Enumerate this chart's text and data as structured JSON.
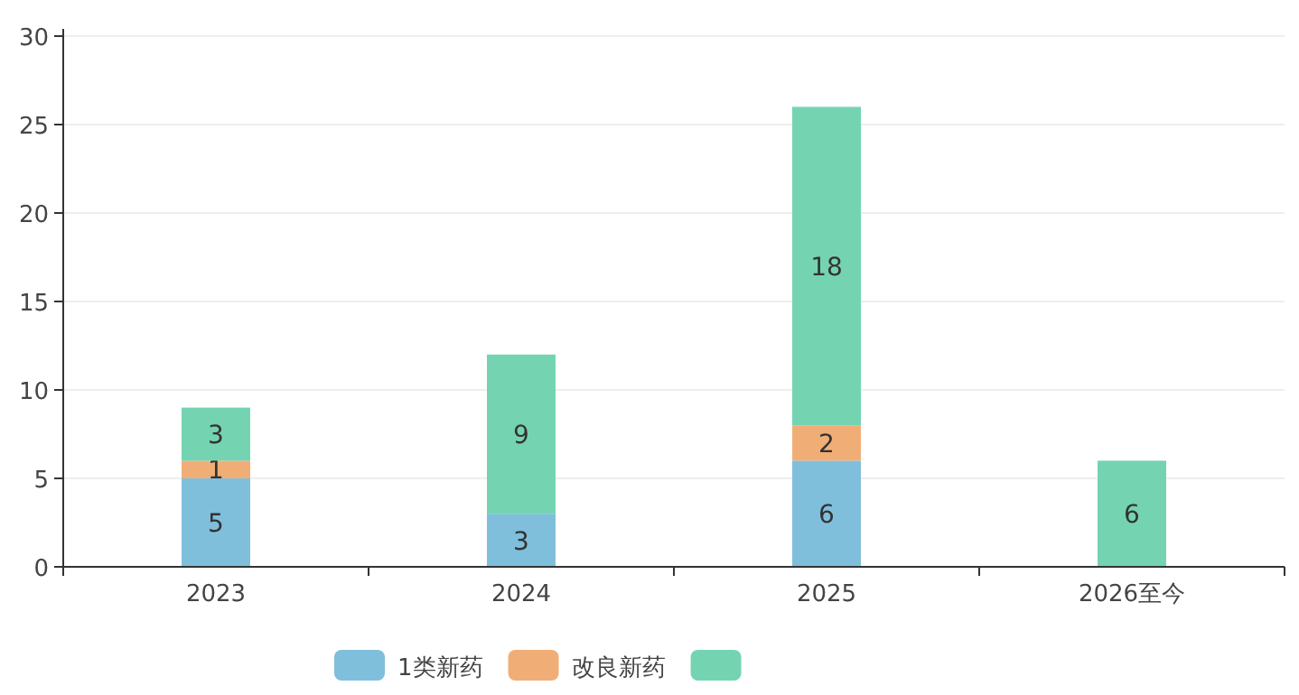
{
  "chart_data": {
    "type": "bar",
    "stacked": true,
    "grid": "y",
    "legend": "bottom",
    "categories": [
      "2023",
      "2024",
      "2025",
      "2026至今"
    ],
    "ylim": [
      0,
      30
    ],
    "yticks": [
      0,
      5,
      10,
      15,
      20,
      25,
      30
    ],
    "series": [
      {
        "name": "1类新药",
        "color": "#7fbfdc",
        "values": [
          5,
          3,
          6,
          0
        ],
        "value_labels": [
          "5",
          "3",
          "6",
          null
        ]
      },
      {
        "name": "改良新药",
        "color": "#f0ae76",
        "values": [
          1,
          0,
          2,
          0
        ],
        "value_labels": [
          "1",
          null,
          "2",
          null
        ]
      },
      {
        "color": "#74d4b2",
        "values": [
          3,
          9,
          18,
          6
        ],
        "value_labels": [
          "3",
          "9",
          "18",
          "6"
        ]
      }
    ]
  }
}
